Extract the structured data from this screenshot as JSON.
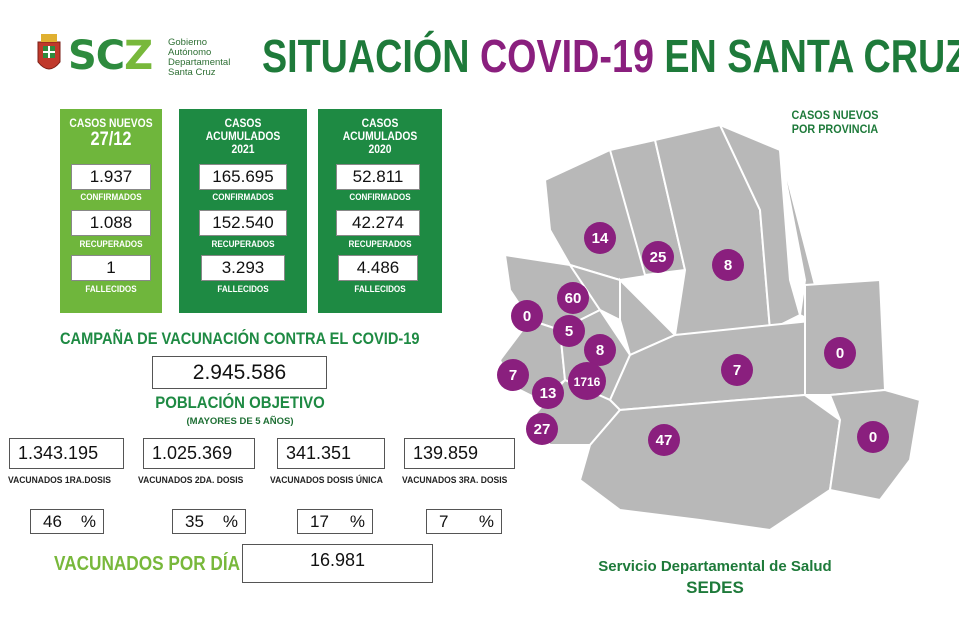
{
  "header": {
    "logo_text_a": "SC",
    "logo_text_b": "Z",
    "gov_lines": [
      "Gobierno",
      "Autónomo",
      "Departamental",
      "Santa Cruz"
    ],
    "title_part1": "SITUACIÓN",
    "title_part2": "COVID-19",
    "title_part3": "EN SANTA CRUZ"
  },
  "new_cases": {
    "head": "CASOS NUEVOS",
    "date": "27/12",
    "confirmed": "1.937",
    "confirmed_label": "CONFIRMADOS",
    "recovered": "1.088",
    "recovered_label": "RECUPERADOS",
    "deaths": "1",
    "deaths_label": "FALLECIDOS"
  },
  "acc_2021": {
    "head": "CASOS ACUMULADOS",
    "year": "2021",
    "confirmed": "165.695",
    "confirmed_label": "CONFIRMADOS",
    "recovered": "152.540",
    "recovered_label": "RECUPERADOS",
    "deaths": "3.293",
    "deaths_label": "FALLECIDOS"
  },
  "acc_2020": {
    "head": "CASOS ACUMULADOS",
    "year": "2020",
    "confirmed": "52.811",
    "confirmed_label": "CONFIRMADOS",
    "recovered": "42.274",
    "recovered_label": "RECUPERADOS",
    "deaths": "4.486",
    "deaths_label": "FALLECIDOS"
  },
  "vaccination": {
    "title": "CAMPAÑA DE VACUNACIÓN CONTRA EL COVID-19",
    "population": "2.945.586",
    "population_label": "POBLACIÓN OBJETIVO",
    "population_sub": "(MAYORES DE 5 AÑOS)",
    "doses": [
      {
        "value": "1.343.195",
        "label": "VACUNADOS 1RA.DOSIS",
        "percent": "46",
        "unit": "%"
      },
      {
        "value": "1.025.369",
        "label": "VACUNADOS 2DA. DOSIS",
        "percent": "35",
        "unit": "%"
      },
      {
        "value": "341.351",
        "label": "VACUNADOS DOSIS ÚNICA",
        "percent": "17",
        "unit": "%"
      },
      {
        "value": "139.859",
        "label": "VACUNADOS 3RA. DOSIS",
        "percent": "7",
        "unit": "%"
      }
    ],
    "per_day_label": "VACUNADOS POR DÍA",
    "per_day_value": "16.981"
  },
  "map": {
    "title_line1": "CASOS NUEVOS",
    "title_line2": "POR PROVINCIA",
    "region_color": "#b8b8b8",
    "bubble_color": "#8a1f7e",
    "province_cases": [
      "14",
      "25",
      "8",
      "60",
      "0",
      "5",
      "8",
      "7",
      "0",
      "7",
      "1716",
      "13",
      "27",
      "47",
      "0"
    ]
  },
  "footer": {
    "line1": "Servicio Departamental de Salud",
    "line2": "SEDES"
  }
}
